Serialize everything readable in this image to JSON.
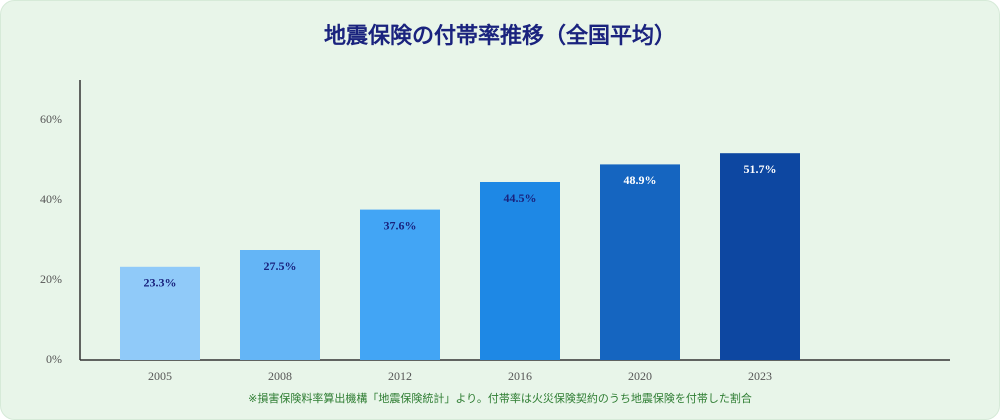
{
  "chart_data": {
    "type": "bar",
    "title": "地震保険の付帯率推移（全国平均）",
    "categories": [
      "2005",
      "2008",
      "2012",
      "2016",
      "2020",
      "2023"
    ],
    "values": [
      23.3,
      27.5,
      37.6,
      44.5,
      48.9,
      51.7
    ],
    "value_labels": [
      "23.3%",
      "27.5%",
      "37.6%",
      "44.5%",
      "48.9%",
      "51.7%"
    ],
    "colors": [
      "#90caf9",
      "#64b5f6",
      "#42a5f5",
      "#1e88e5",
      "#1565c0",
      "#0d47a1"
    ],
    "value_label_colors": [
      "#1a237e",
      "#1a237e",
      "#1a237e",
      "#1a237e",
      "#ffffff",
      "#ffffff"
    ],
    "ylim": [
      0,
      70
    ],
    "yticks": [
      {
        "value": 0,
        "label": "0%"
      },
      {
        "value": 20,
        "label": "20%"
      },
      {
        "value": 40,
        "label": "40%"
      },
      {
        "value": 60,
        "label": "60%"
      }
    ],
    "grid": false,
    "note": "※損害保険料率算出機構「地震保険統計」より。付帯率は火災保険契約のうち地震保険を付帯した割合"
  }
}
